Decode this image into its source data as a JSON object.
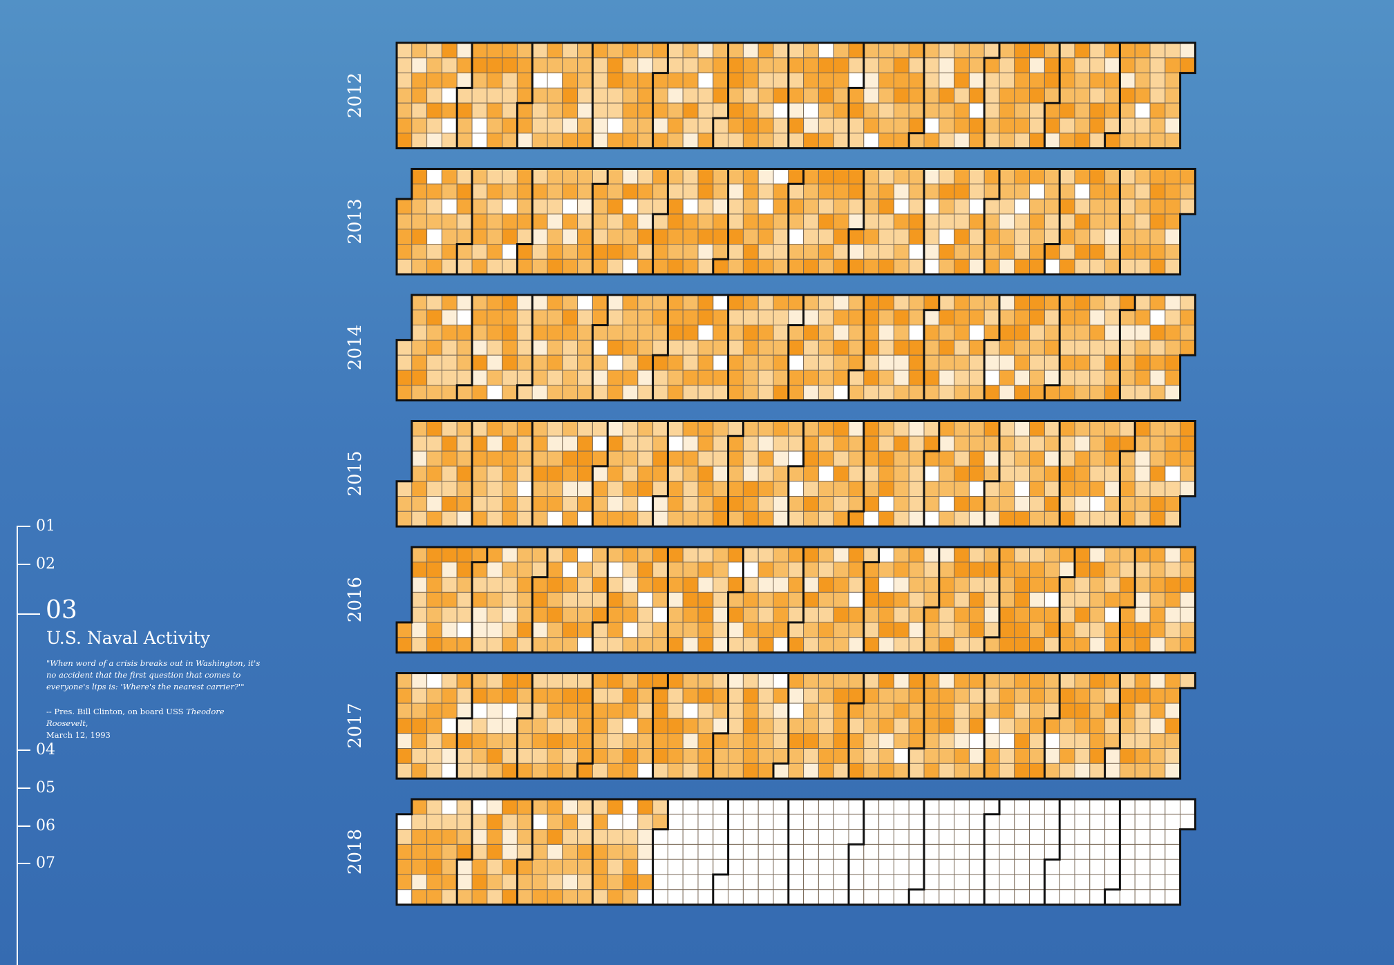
{
  "colors": {
    "empty": "#ffffff",
    "level1": "#fdefd8",
    "level2": "#fbd59a",
    "level3": "#f8bd64",
    "level4": "#f7a838",
    "level5": "#f4991f",
    "grid": "#7a6a58",
    "border": "#111111"
  },
  "nav": {
    "items": [
      "01",
      "02",
      "04",
      "05",
      "06",
      "07"
    ],
    "active": {
      "number": "03",
      "title": "U.S. Naval Activity",
      "quote": "\"When word of a crisis breaks out in Washington, it's no accident that the first question that comes to everyone's lips is: 'Where's the nearest carrier?'\"",
      "source_prefix": "-- Pres. Bill Clinton, on board USS ",
      "source_ship": "Theodore Roosevelt",
      "source_suffix": ",",
      "source_date": "March 12, 1993"
    }
  },
  "chart_data": {
    "type": "heatmap",
    "title": "U.S. Naval Activity",
    "layout": "calendar (weeks as columns, weekdays Sun–Sat as rows, month borders)",
    "years": [
      "2012",
      "2013",
      "2014",
      "2015",
      "2016",
      "2017",
      "2018"
    ],
    "value_scale": "0 (no activity, white) to 5 (highest, dark orange)",
    "note": "2018 data ends on 2018-04-30; later days shown empty",
    "data_end": "2018-04-30"
  }
}
